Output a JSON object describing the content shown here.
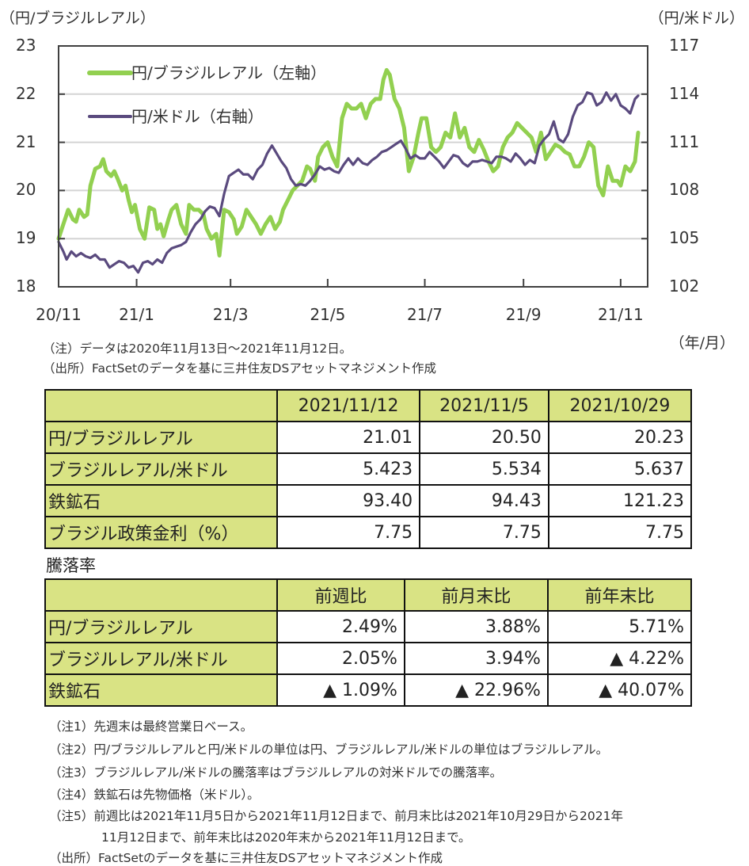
{
  "chart_data": {
    "type": "line",
    "title": "",
    "left_axis_unit": "（円/ブラジルレアル）",
    "right_axis_unit": "（円/米ドル）",
    "x_axis_unit": "（年/月）",
    "left_ylim": [
      18,
      23
    ],
    "right_ylim": [
      102,
      117
    ],
    "left_ticks": [
      "23",
      "22",
      "21",
      "20",
      "19",
      "18"
    ],
    "right_ticks": [
      "117",
      "114",
      "111",
      "108",
      "105",
      "102"
    ],
    "left_tick_values": [
      23,
      22,
      21,
      20,
      19,
      18
    ],
    "right_tick_values": [
      117,
      114,
      111,
      108,
      105,
      102
    ],
    "x_tick_labels": [
      "20/11",
      "21/1",
      "21/3",
      "21/5",
      "21/7",
      "21/9",
      "21/11"
    ],
    "x_tick_days": [
      0,
      49,
      108,
      169,
      230,
      292,
      353
    ],
    "x_range_days": [
      0,
      364
    ],
    "grid": true,
    "legend_position": "top-left",
    "series": [
      {
        "name": "円/ブラジルレアル（左軸）",
        "axis": "left",
        "color": "#92d050",
        "days": [
          0,
          3,
          6,
          9,
          11,
          13,
          16,
          18,
          20,
          23,
          26,
          28,
          30,
          33,
          35,
          37,
          40,
          42,
          44,
          46,
          48,
          51,
          54,
          57,
          60,
          62,
          64,
          66,
          69,
          71,
          74,
          77,
          80,
          82,
          85,
          88,
          91,
          93,
          96,
          99,
          101,
          104,
          107,
          110,
          112,
          115,
          118,
          121,
          124,
          127,
          130,
          133,
          136,
          139,
          141,
          144,
          147,
          150,
          153,
          156,
          158,
          161,
          163,
          166,
          169,
          172,
          175,
          178,
          181,
          184,
          187,
          190,
          193,
          196,
          199,
          202,
          204,
          206,
          208,
          211,
          214,
          217,
          220,
          223,
          226,
          228,
          231,
          234,
          237,
          240,
          243,
          246,
          249,
          252,
          255,
          258,
          261,
          264,
          267,
          270,
          273,
          276,
          279,
          282,
          285,
          288,
          291,
          294,
          297,
          300,
          303,
          306,
          309,
          312,
          315,
          318,
          321,
          324,
          327,
          330,
          333,
          336,
          339,
          342,
          345,
          348,
          351,
          353,
          356,
          359,
          362,
          364
        ],
        "values": [
          19.0,
          19.3,
          19.6,
          19.4,
          19.35,
          19.6,
          19.45,
          19.5,
          20.1,
          20.45,
          20.5,
          20.65,
          20.4,
          20.3,
          20.4,
          20.25,
          20.0,
          20.1,
          19.8,
          19.55,
          19.7,
          19.2,
          19.0,
          19.65,
          19.6,
          19.2,
          19.3,
          19.05,
          19.4,
          19.6,
          19.7,
          19.3,
          19.1,
          19.7,
          19.6,
          19.6,
          19.5,
          19.2,
          19.0,
          19.1,
          18.65,
          19.6,
          19.55,
          19.4,
          19.1,
          19.25,
          19.6,
          19.45,
          19.3,
          19.1,
          19.3,
          19.45,
          19.2,
          19.35,
          19.6,
          19.8,
          20.0,
          20.1,
          20.2,
          20.5,
          20.45,
          20.2,
          20.7,
          20.9,
          21.0,
          20.7,
          20.5,
          21.5,
          21.8,
          21.7,
          21.7,
          21.8,
          21.5,
          21.8,
          21.9,
          21.9,
          22.3,
          22.5,
          22.4,
          21.9,
          21.7,
          21.3,
          20.4,
          20.7,
          21.2,
          21.5,
          21.5,
          20.9,
          20.8,
          20.9,
          21.2,
          21.1,
          21.6,
          21.1,
          21.3,
          20.9,
          20.8,
          21.05,
          20.85,
          20.6,
          20.4,
          20.5,
          20.9,
          21.1,
          21.2,
          21.4,
          21.3,
          21.2,
          21.1,
          20.8,
          21.2,
          20.65,
          20.8,
          20.95,
          20.9,
          20.8,
          20.75,
          20.5,
          20.5,
          20.7,
          21.0,
          20.9,
          20.1,
          19.9,
          20.5,
          20.2,
          20.2,
          20.1,
          20.5,
          20.4,
          20.6,
          21.2,
          21.01
        ]
      },
      {
        "name": "円/米ドル（右軸）",
        "axis": "right",
        "color": "#5a4a7e",
        "days": [
          0,
          3,
          5,
          8,
          11,
          14,
          17,
          20,
          23,
          26,
          29,
          32,
          35,
          38,
          41,
          44,
          47,
          50,
          53,
          56,
          59,
          62,
          65,
          68,
          71,
          74,
          77,
          80,
          83,
          86,
          89,
          92,
          95,
          98,
          101,
          104,
          107,
          110,
          113,
          116,
          119,
          122,
          125,
          128,
          131,
          134,
          137,
          140,
          143,
          146,
          149,
          152,
          155,
          158,
          161,
          164,
          167,
          170,
          173,
          176,
          179,
          182,
          185,
          188,
          191,
          194,
          197,
          200,
          203,
          206,
          209,
          212,
          215,
          218,
          221,
          224,
          227,
          230,
          233,
          236,
          239,
          242,
          245,
          248,
          251,
          254,
          257,
          260,
          263,
          266,
          269,
          272,
          275,
          278,
          281,
          284,
          287,
          290,
          293,
          296,
          299,
          302,
          305,
          308,
          311,
          314,
          317,
          320,
          323,
          326,
          329,
          332,
          335,
          338,
          341,
          344,
          347,
          350,
          353,
          356,
          359,
          362,
          364
        ],
        "values": [
          104.8,
          104.2,
          103.7,
          104.2,
          103.9,
          104.1,
          103.9,
          103.8,
          104.0,
          103.7,
          103.7,
          103.2,
          103.4,
          103.6,
          103.5,
          103.2,
          103.3,
          102.9,
          103.5,
          103.6,
          103.4,
          103.7,
          103.5,
          104.1,
          104.4,
          104.5,
          104.6,
          104.8,
          105.4,
          105.9,
          106.2,
          106.7,
          107.0,
          106.9,
          106.4,
          107.8,
          108.9,
          109.1,
          109.3,
          109.0,
          109.0,
          108.7,
          109.3,
          109.6,
          110.3,
          110.8,
          110.3,
          109.8,
          109.4,
          108.7,
          108.3,
          108.4,
          108.3,
          108.6,
          109.0,
          109.5,
          109.3,
          109.4,
          109.2,
          109.1,
          109.6,
          110.0,
          109.6,
          110.0,
          109.7,
          109.6,
          109.9,
          110.1,
          110.4,
          110.5,
          110.7,
          110.9,
          111.1,
          110.6,
          110.0,
          110.2,
          110.0,
          110.0,
          110.4,
          110.1,
          109.8,
          109.4,
          109.8,
          110.2,
          110.1,
          109.7,
          109.5,
          109.8,
          109.8,
          109.9,
          109.8,
          109.7,
          110.1,
          110.1,
          110.0,
          109.8,
          110.3,
          110.0,
          109.6,
          109.9,
          109.7,
          110.8,
          111.2,
          111.5,
          112.3,
          111.2,
          111.0,
          111.5,
          112.6,
          113.3,
          113.5,
          114.1,
          114.0,
          113.3,
          113.5,
          114.1,
          113.6,
          114.0,
          113.3,
          113.1,
          112.8,
          113.7,
          113.9
        ]
      }
    ]
  },
  "chart_notes": [
    "（注）データは2020年11月13日～2021年11月12日。",
    "（出所）FactSetのデータを基に三井住友DSアセットマネジメント作成"
  ],
  "price_table": {
    "columns": [
      "2021/11/12",
      "2021/11/5",
      "2021/10/29"
    ],
    "rows": [
      {
        "label": "円/ブラジルレアル",
        "values": [
          "21.01",
          "20.50",
          "20.23"
        ]
      },
      {
        "label": "ブラジルレアル/米ドル",
        "values": [
          "5.423",
          "5.534",
          "5.637"
        ]
      },
      {
        "label": "鉄鉱石",
        "values": [
          "93.40",
          "94.43",
          "121.23"
        ]
      },
      {
        "label": "ブラジル政策金利（%）",
        "values": [
          "7.75",
          "7.75",
          "7.75"
        ]
      }
    ]
  },
  "change_section_label": "騰落率",
  "change_table": {
    "columns": [
      "前週比",
      "前月末比",
      "前年末比"
    ],
    "rows": [
      {
        "label": "円/ブラジルレアル",
        "values": [
          "2.49%",
          "3.88%",
          "5.71%"
        ]
      },
      {
        "label": "ブラジルレアル/米ドル",
        "values": [
          "2.05%",
          "3.94%",
          "▲ 4.22%"
        ]
      },
      {
        "label": "鉄鉱石",
        "values": [
          "▲ 1.09%",
          "▲ 22.96%",
          "▲ 40.07%"
        ]
      }
    ]
  },
  "footnotes": [
    "（注1）先週末は最終営業日ベース。",
    "（注2）円/ブラジルレアルと円/米ドルの単位は円、ブラジルレアル/米ドルの単位はブラジルレアル。",
    "（注3）ブラジルレアル/米ドルの騰落率はブラジルレアルの対米ドルでの騰落率。",
    "（注4）鉄鉱石は先物価格（米ドル）。",
    "（注5）前週比は2021年11月5日から2021年11月12日まで、前月末比は2021年10月29日から2021年",
    "11月12日まで、前年末比は2020年末から2021年11月12日まで。",
    "（出所）FactSetのデータを基に三井住友DSアセットマネジメント作成"
  ]
}
